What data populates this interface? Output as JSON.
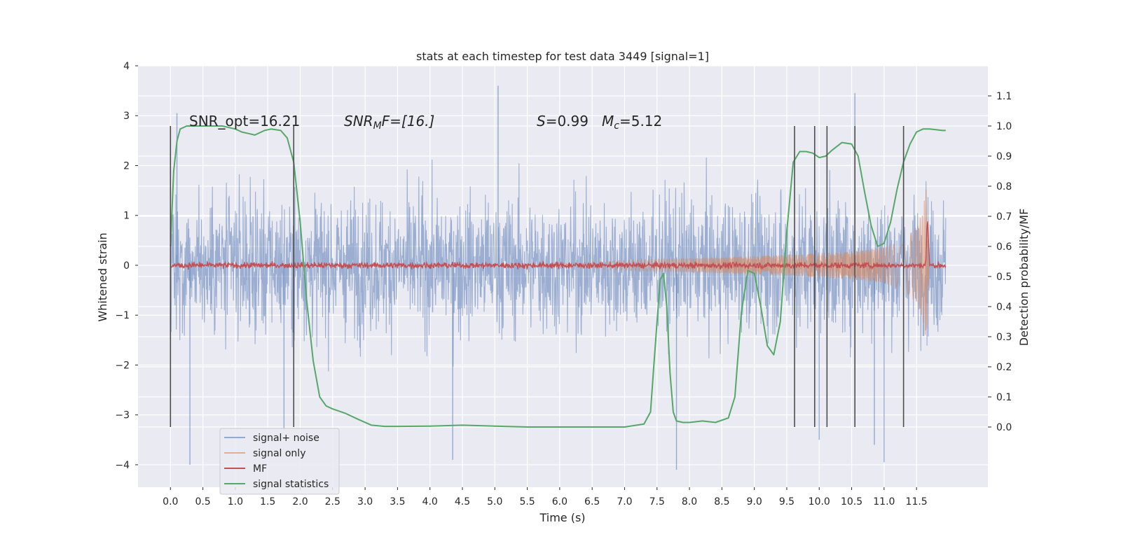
{
  "chart_data": {
    "type": "line",
    "title": "stats at each timestep for test data 3449 [signal=1]",
    "xlabel": "Time (s)",
    "ylabel": "Whitened strain",
    "y2label": "Detection probability/MF",
    "xlim": [
      -0.5,
      12.6
    ],
    "ylim": [
      -4.45,
      4.0
    ],
    "y2lim": [
      -0.2,
      1.2
    ],
    "x_ticks": [
      0.0,
      0.5,
      1.0,
      1.5,
      2.0,
      2.5,
      3.0,
      3.5,
      4.0,
      4.5,
      5.0,
      5.5,
      6.0,
      6.5,
      7.0,
      7.5,
      8.0,
      8.5,
      9.0,
      9.5,
      10.0,
      10.5,
      11.0,
      11.5
    ],
    "x_tick_labels": [
      "0.0",
      "0.5",
      "1.0",
      "1.5",
      "2.0",
      "2.5",
      "3.0",
      "3.5",
      "4.0",
      "4.5",
      "5.0",
      "5.5",
      "6.0",
      "6.5",
      "7.0",
      "7.5",
      "8.0",
      "8.5",
      "9.0",
      "9.5",
      "10.0",
      "10.5",
      "11.0",
      "11.5"
    ],
    "y_ticks": [
      -4,
      -3,
      -2,
      -1,
      0,
      1,
      2,
      3,
      4
    ],
    "y_tick_labels": [
      "−4",
      "−3",
      "−2",
      "−1",
      "0",
      "1",
      "2",
      "3",
      "4"
    ],
    "y2_ticks": [
      0.0,
      0.1,
      0.2,
      0.3,
      0.4,
      0.5,
      0.6,
      0.7,
      0.8,
      0.9,
      1.0,
      1.1
    ],
    "y2_tick_labels": [
      "0.0",
      "0.1",
      "0.2",
      "0.3",
      "0.4",
      "0.5",
      "0.6",
      "0.7",
      "0.8",
      "0.9",
      "1.0",
      "1.1"
    ],
    "grid": true,
    "legend_position": "lower-left",
    "annotations": {
      "snr_opt": "SNR_opt=16.21",
      "snr_mf_name": "SNR",
      "snr_mf_sub": "M",
      "snr_mf_rest": "F=[16.]",
      "s_name": "S",
      "s_rest": "=0.99",
      "mc_name": "M",
      "mc_sub": "c",
      "mc_rest": "=5.12"
    },
    "series": [
      {
        "name": "signal+ noise",
        "color": "#4c72b0",
        "axis": "left",
        "description_values": {
          "t_range": [
            0.0,
            11.95
          ],
          "band_typical": [
            -1.6,
            1.6
          ],
          "band_extreme": [
            -4.1,
            3.6
          ],
          "spikes": [
            [
              0.3,
              -4.0
            ],
            [
              4.35,
              -3.9
            ],
            [
              5.05,
              3.6
            ],
            [
              7.8,
              -4.1
            ],
            [
              10.55,
              3.45
            ],
            [
              10.0,
              -3.5
            ],
            [
              11.0,
              -3.95
            ],
            [
              10.85,
              -3.6
            ],
            [
              1.75,
              -3.3
            ],
            [
              0.1,
              3.05
            ]
          ]
        }
      },
      {
        "name": "signal only",
        "color": "#dd8452",
        "axis": "left",
        "envelope": {
          "t": [
            5.5,
            7.0,
            8.0,
            9.0,
            10.0,
            10.5,
            11.0,
            11.3,
            11.5,
            11.6,
            11.65,
            11.7
          ],
          "amp": [
            0.0,
            0.1,
            0.14,
            0.18,
            0.24,
            0.28,
            0.36,
            0.5,
            0.75,
            1.1,
            1.6,
            0.0
          ]
        }
      },
      {
        "name": "MF",
        "color": "#c44e52",
        "axis": "right",
        "baseline": 0.537,
        "peak": [
          11.67,
          0.68
        ]
      },
      {
        "name": "signal statistics",
        "color": "#55a868",
        "axis": "right",
        "x": [
          0.0,
          0.05,
          0.1,
          0.15,
          0.25,
          0.5,
          0.8,
          1.0,
          1.1,
          1.2,
          1.3,
          1.45,
          1.55,
          1.7,
          1.8,
          1.9,
          2.0,
          2.1,
          2.2,
          2.3,
          2.4,
          2.5,
          2.7,
          2.9,
          3.1,
          3.3,
          3.5,
          4.0,
          4.5,
          5.0,
          5.5,
          6.0,
          6.5,
          7.0,
          7.3,
          7.4,
          7.45,
          7.5,
          7.55,
          7.6,
          7.65,
          7.7,
          7.75,
          7.8,
          7.9,
          8.0,
          8.2,
          8.4,
          8.6,
          8.7,
          8.8,
          8.9,
          9.0,
          9.1,
          9.2,
          9.3,
          9.4,
          9.5,
          9.6,
          9.7,
          9.8,
          9.9,
          10.0,
          10.1,
          10.2,
          10.35,
          10.5,
          10.6,
          10.7,
          10.8,
          10.9,
          11.0,
          11.1,
          11.2,
          11.3,
          11.4,
          11.5,
          11.6,
          11.7,
          11.8,
          11.9,
          11.95
        ],
        "values": [
          0.6,
          0.85,
          0.95,
          0.99,
          1.0,
          1.0,
          1.0,
          0.99,
          0.98,
          0.975,
          0.97,
          0.985,
          0.99,
          0.985,
          0.96,
          0.88,
          0.68,
          0.42,
          0.22,
          0.1,
          0.07,
          0.06,
          0.045,
          0.025,
          0.006,
          0.002,
          0.002,
          0.003,
          0.006,
          0.003,
          0.0,
          0.0,
          0.0,
          0.0,
          0.01,
          0.05,
          0.2,
          0.35,
          0.49,
          0.51,
          0.4,
          0.18,
          0.05,
          0.02,
          0.015,
          0.015,
          0.02,
          0.015,
          0.03,
          0.1,
          0.38,
          0.52,
          0.51,
          0.4,
          0.27,
          0.24,
          0.35,
          0.65,
          0.88,
          0.915,
          0.915,
          0.91,
          0.895,
          0.9,
          0.92,
          0.945,
          0.94,
          0.9,
          0.78,
          0.67,
          0.6,
          0.61,
          0.68,
          0.79,
          0.88,
          0.94,
          0.98,
          0.99,
          0.99,
          0.988,
          0.985,
          0.985
        ]
      }
    ],
    "vertical_markers": {
      "color": "#4d4d4d",
      "x": [
        0.0,
        1.9,
        9.62,
        9.93,
        10.12,
        10.55,
        11.3
      ],
      "ymin_right": 0.0,
      "ymax_right": 1.0
    }
  },
  "legend": [
    {
      "label": "signal+ noise",
      "color": "#4c72b0",
      "opacity": 0.55
    },
    {
      "label": "signal only",
      "color": "#dd8452",
      "opacity": 0.6
    },
    {
      "label": "MF",
      "color": "#c44e52",
      "opacity": 1
    },
    {
      "label": "signal statistics",
      "color": "#55a868",
      "opacity": 1
    }
  ]
}
